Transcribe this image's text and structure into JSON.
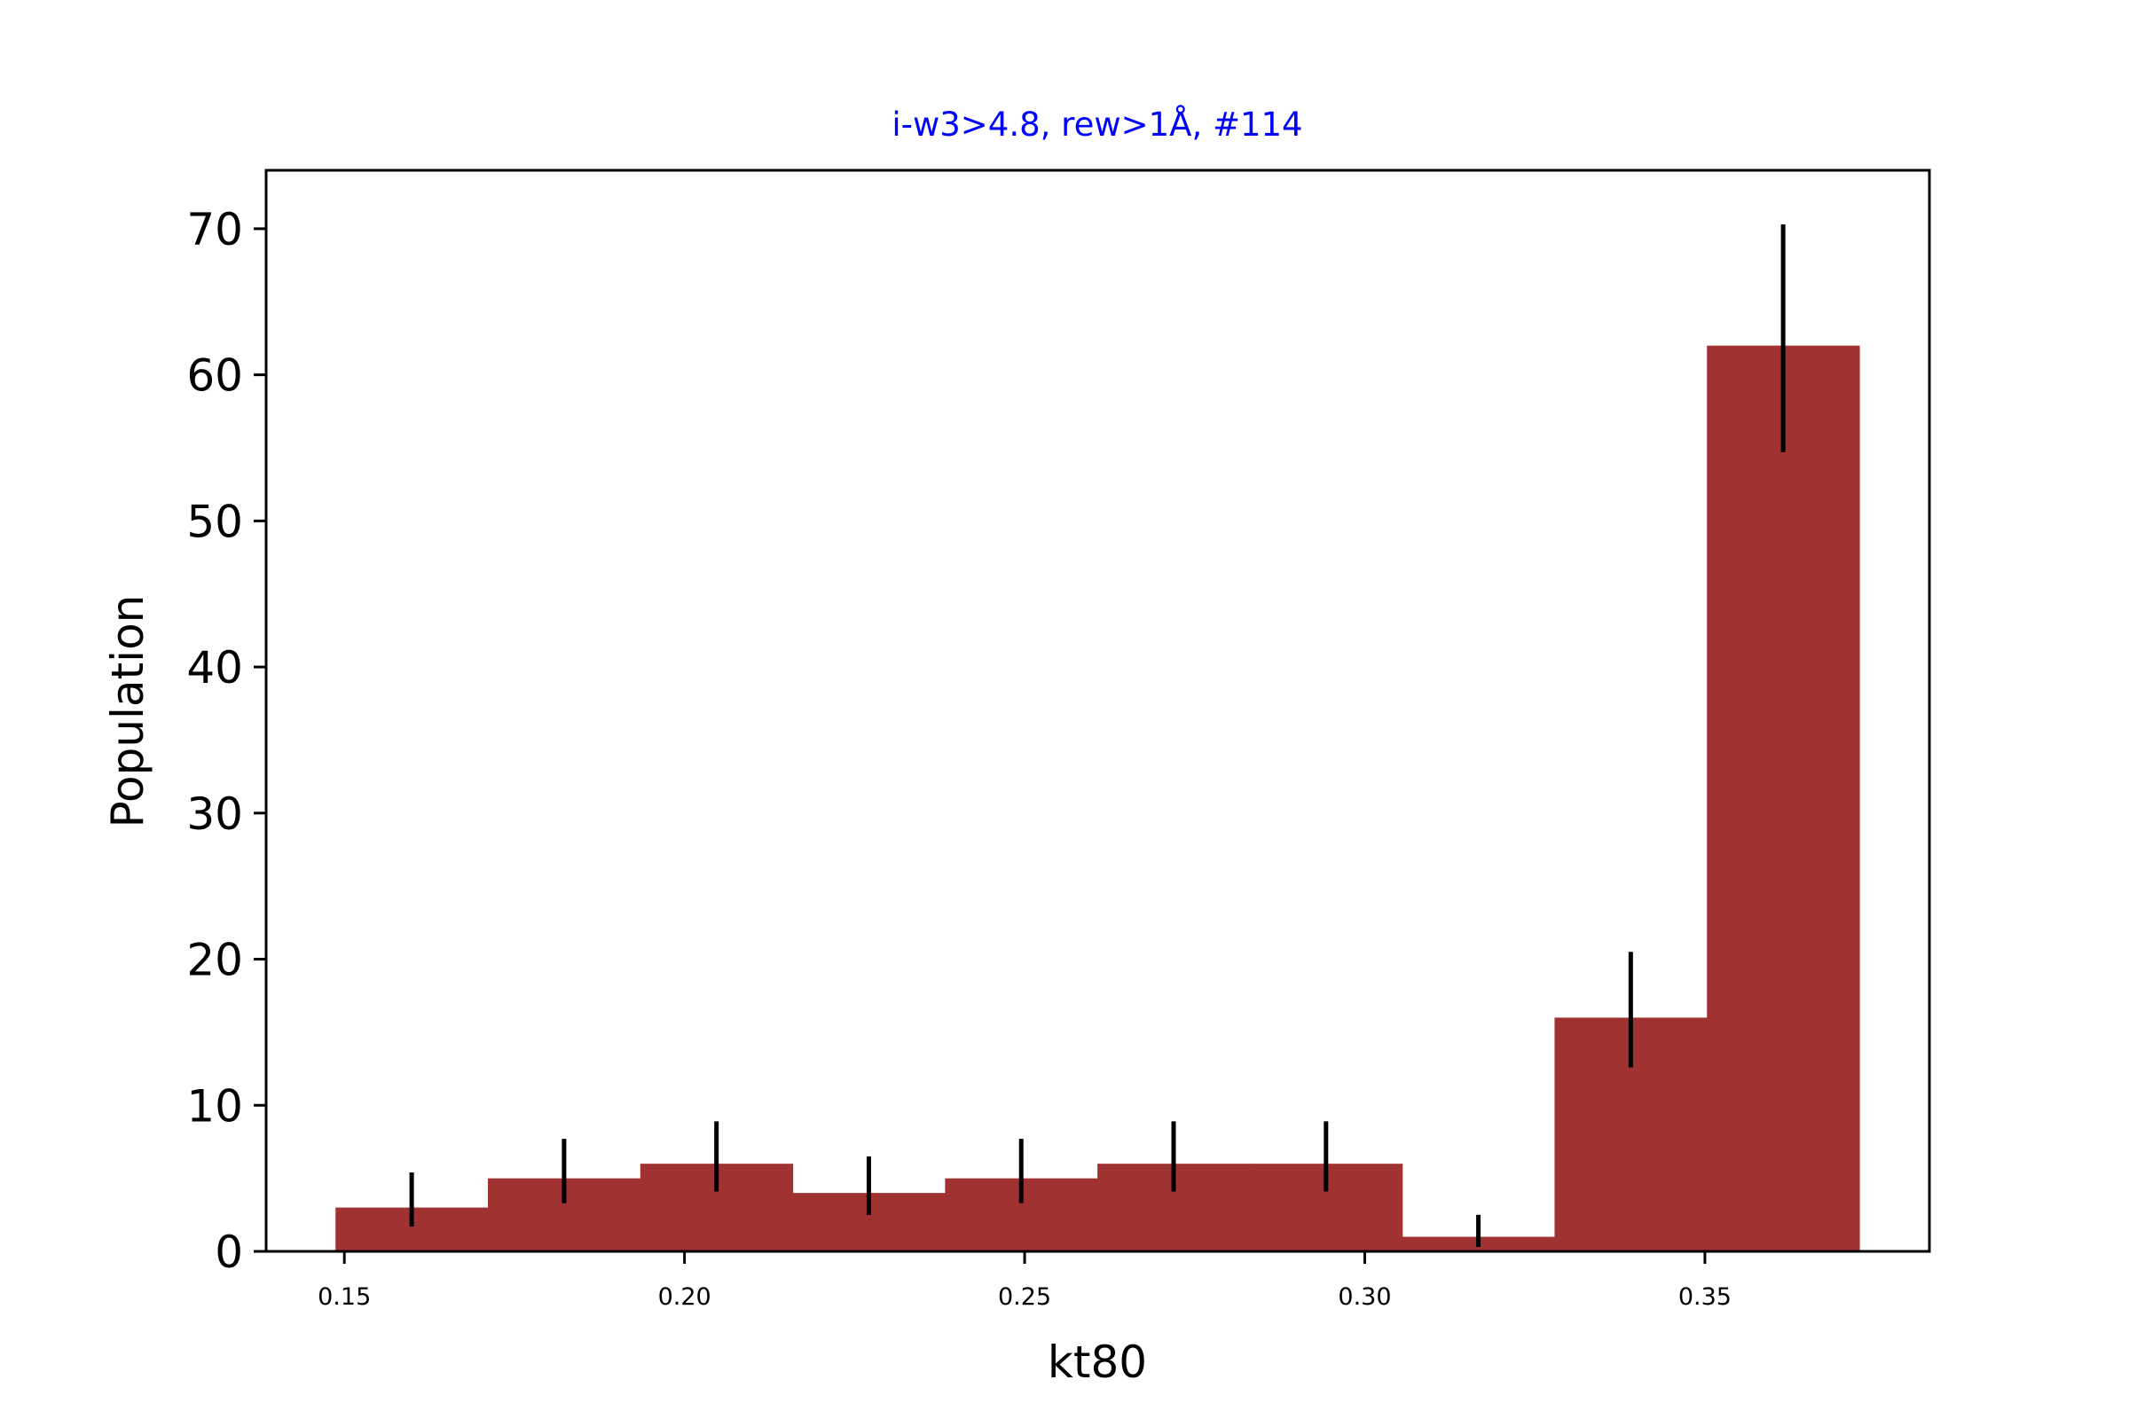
{
  "chart_data": {
    "type": "bar",
    "title": "i-w3>4.8, rew>1Å, #114",
    "title_color": "#0000ff",
    "xlabel": "kt80",
    "ylabel": "Population",
    "xlim": [
      0.1385,
      0.383
    ],
    "ylim": [
      0,
      74
    ],
    "bar_color": "#a03232",
    "errorbar_color": "#000000",
    "x_ticks": [
      0.15,
      0.2,
      0.25,
      0.3,
      0.35
    ],
    "x_tick_labels": [
      "0.15",
      "0.20",
      "0.25",
      "0.30",
      "0.35"
    ],
    "y_ticks": [
      0,
      10,
      20,
      30,
      40,
      50,
      60,
      70
    ],
    "y_tick_labels": [
      "0",
      "10",
      "20",
      "30",
      "40",
      "50",
      "60",
      "70"
    ],
    "bin_edges": [
      0.1487,
      0.1711,
      0.1935,
      0.2159,
      0.2383,
      0.2607,
      0.2831,
      0.3055,
      0.3279,
      0.3503,
      0.3727
    ],
    "bin_centers": [
      0.1599,
      0.1823,
      0.2047,
      0.2271,
      0.2495,
      0.2719,
      0.2943,
      0.3167,
      0.3391,
      0.3615
    ],
    "values": [
      3,
      5,
      6,
      4,
      5,
      6,
      6,
      1,
      16,
      62
    ],
    "error_low": [
      1.7,
      3.3,
      4.1,
      2.5,
      3.3,
      4.1,
      4.1,
      0.3,
      12.6,
      54.7
    ],
    "error_high": [
      5.4,
      7.7,
      8.9,
      6.5,
      7.7,
      8.9,
      8.9,
      2.5,
      20.5,
      70.3
    ],
    "grid": false,
    "legend": "none"
  }
}
